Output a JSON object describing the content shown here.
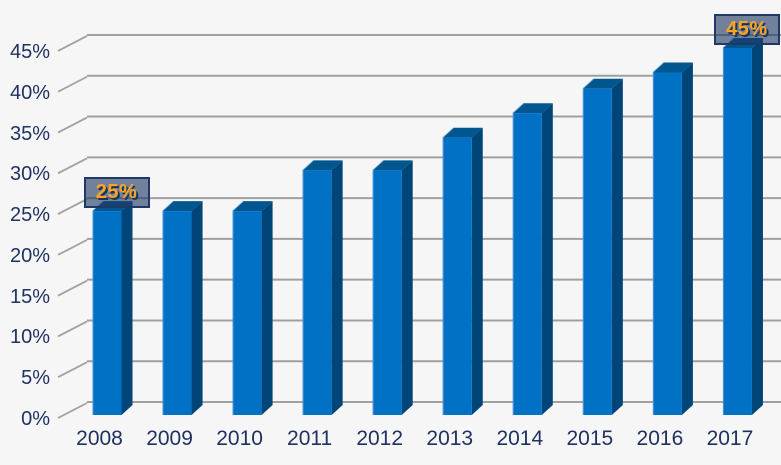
{
  "chart_data": {
    "type": "bar",
    "style": "3d-column",
    "title": "",
    "xlabel": "",
    "ylabel": "",
    "categories": [
      "2008",
      "2009",
      "2010",
      "2011",
      "2012",
      "2013",
      "2014",
      "2015",
      "2016",
      "2017"
    ],
    "values": [
      25,
      25,
      25,
      30,
      30,
      34,
      37,
      40,
      42,
      45
    ],
    "unit": "%",
    "ylim": [
      0,
      45
    ],
    "y_tick_step": 5,
    "y_tick_labels": [
      "0%",
      "5%",
      "10%",
      "15%",
      "20%",
      "25%",
      "30%",
      "35%",
      "40%",
      "45%"
    ],
    "grid": true,
    "legend": false,
    "callouts": [
      {
        "category": "2008",
        "label": "25%"
      },
      {
        "category": "2017",
        "label": "45%"
      }
    ],
    "colors": {
      "background": "#F6F6F6",
      "bar_front": "#0071C5",
      "bar_top": "#00568F",
      "bar_side": "#004577",
      "bar_edge_highlight": "#5B9BD5",
      "gridline": "#A0A0A0",
      "axis_text": "#1F3260",
      "callout_fill": "rgba(31,56,100,0.62)",
      "callout_border": "#1F3864",
      "callout_text": "#FFA41C"
    }
  }
}
